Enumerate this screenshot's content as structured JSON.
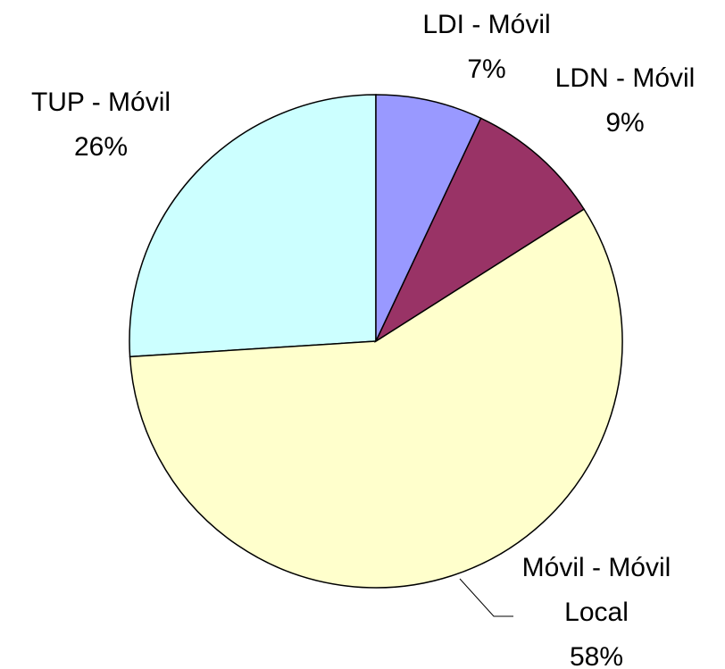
{
  "chart_data": {
    "type": "pie",
    "categories": [
      "LDI - Móvil",
      "LDN - Móvil",
      "Móvil - Móvil Local",
      "TUP - Móvil"
    ],
    "values": [
      7,
      9,
      58,
      26
    ],
    "value_labels": [
      "7%",
      "9%",
      "58%",
      "26%"
    ],
    "colors": [
      "#9999ff",
      "#993366",
      "#ffffcc",
      "#ccffff"
    ]
  }
}
